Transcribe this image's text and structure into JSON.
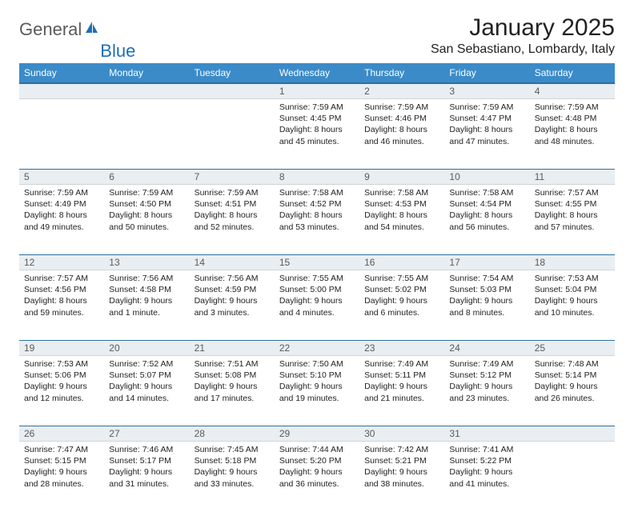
{
  "brand": {
    "name_part1": "General",
    "name_part2": "Blue"
  },
  "title": "January 2025",
  "location": "San Sebastiano, Lombardy, Italy",
  "colors": {
    "header_bg": "#3b8bc9",
    "header_border": "#2f6fa0",
    "daynum_bg": "#e9eef2",
    "brand_gray": "#5a5a5a",
    "brand_blue": "#1f6fb2"
  },
  "weekdays": [
    "Sunday",
    "Monday",
    "Tuesday",
    "Wednesday",
    "Thursday",
    "Friday",
    "Saturday"
  ],
  "weeks": [
    [
      null,
      null,
      null,
      {
        "n": "1",
        "sr": "7:59 AM",
        "ss": "4:45 PM",
        "dl": "8 hours and 45 minutes."
      },
      {
        "n": "2",
        "sr": "7:59 AM",
        "ss": "4:46 PM",
        "dl": "8 hours and 46 minutes."
      },
      {
        "n": "3",
        "sr": "7:59 AM",
        "ss": "4:47 PM",
        "dl": "8 hours and 47 minutes."
      },
      {
        "n": "4",
        "sr": "7:59 AM",
        "ss": "4:48 PM",
        "dl": "8 hours and 48 minutes."
      }
    ],
    [
      {
        "n": "5",
        "sr": "7:59 AM",
        "ss": "4:49 PM",
        "dl": "8 hours and 49 minutes."
      },
      {
        "n": "6",
        "sr": "7:59 AM",
        "ss": "4:50 PM",
        "dl": "8 hours and 50 minutes."
      },
      {
        "n": "7",
        "sr": "7:59 AM",
        "ss": "4:51 PM",
        "dl": "8 hours and 52 minutes."
      },
      {
        "n": "8",
        "sr": "7:58 AM",
        "ss": "4:52 PM",
        "dl": "8 hours and 53 minutes."
      },
      {
        "n": "9",
        "sr": "7:58 AM",
        "ss": "4:53 PM",
        "dl": "8 hours and 54 minutes."
      },
      {
        "n": "10",
        "sr": "7:58 AM",
        "ss": "4:54 PM",
        "dl": "8 hours and 56 minutes."
      },
      {
        "n": "11",
        "sr": "7:57 AM",
        "ss": "4:55 PM",
        "dl": "8 hours and 57 minutes."
      }
    ],
    [
      {
        "n": "12",
        "sr": "7:57 AM",
        "ss": "4:56 PM",
        "dl": "8 hours and 59 minutes."
      },
      {
        "n": "13",
        "sr": "7:56 AM",
        "ss": "4:58 PM",
        "dl": "9 hours and 1 minute."
      },
      {
        "n": "14",
        "sr": "7:56 AM",
        "ss": "4:59 PM",
        "dl": "9 hours and 3 minutes."
      },
      {
        "n": "15",
        "sr": "7:55 AM",
        "ss": "5:00 PM",
        "dl": "9 hours and 4 minutes."
      },
      {
        "n": "16",
        "sr": "7:55 AM",
        "ss": "5:02 PM",
        "dl": "9 hours and 6 minutes."
      },
      {
        "n": "17",
        "sr": "7:54 AM",
        "ss": "5:03 PM",
        "dl": "9 hours and 8 minutes."
      },
      {
        "n": "18",
        "sr": "7:53 AM",
        "ss": "5:04 PM",
        "dl": "9 hours and 10 minutes."
      }
    ],
    [
      {
        "n": "19",
        "sr": "7:53 AM",
        "ss": "5:06 PM",
        "dl": "9 hours and 12 minutes."
      },
      {
        "n": "20",
        "sr": "7:52 AM",
        "ss": "5:07 PM",
        "dl": "9 hours and 14 minutes."
      },
      {
        "n": "21",
        "sr": "7:51 AM",
        "ss": "5:08 PM",
        "dl": "9 hours and 17 minutes."
      },
      {
        "n": "22",
        "sr": "7:50 AM",
        "ss": "5:10 PM",
        "dl": "9 hours and 19 minutes."
      },
      {
        "n": "23",
        "sr": "7:49 AM",
        "ss": "5:11 PM",
        "dl": "9 hours and 21 minutes."
      },
      {
        "n": "24",
        "sr": "7:49 AM",
        "ss": "5:12 PM",
        "dl": "9 hours and 23 minutes."
      },
      {
        "n": "25",
        "sr": "7:48 AM",
        "ss": "5:14 PM",
        "dl": "9 hours and 26 minutes."
      }
    ],
    [
      {
        "n": "26",
        "sr": "7:47 AM",
        "ss": "5:15 PM",
        "dl": "9 hours and 28 minutes."
      },
      {
        "n": "27",
        "sr": "7:46 AM",
        "ss": "5:17 PM",
        "dl": "9 hours and 31 minutes."
      },
      {
        "n": "28",
        "sr": "7:45 AM",
        "ss": "5:18 PM",
        "dl": "9 hours and 33 minutes."
      },
      {
        "n": "29",
        "sr": "7:44 AM",
        "ss": "5:20 PM",
        "dl": "9 hours and 36 minutes."
      },
      {
        "n": "30",
        "sr": "7:42 AM",
        "ss": "5:21 PM",
        "dl": "9 hours and 38 minutes."
      },
      {
        "n": "31",
        "sr": "7:41 AM",
        "ss": "5:22 PM",
        "dl": "9 hours and 41 minutes."
      },
      null
    ]
  ],
  "labels": {
    "sunrise": "Sunrise:",
    "sunset": "Sunset:",
    "daylight": "Daylight:"
  }
}
